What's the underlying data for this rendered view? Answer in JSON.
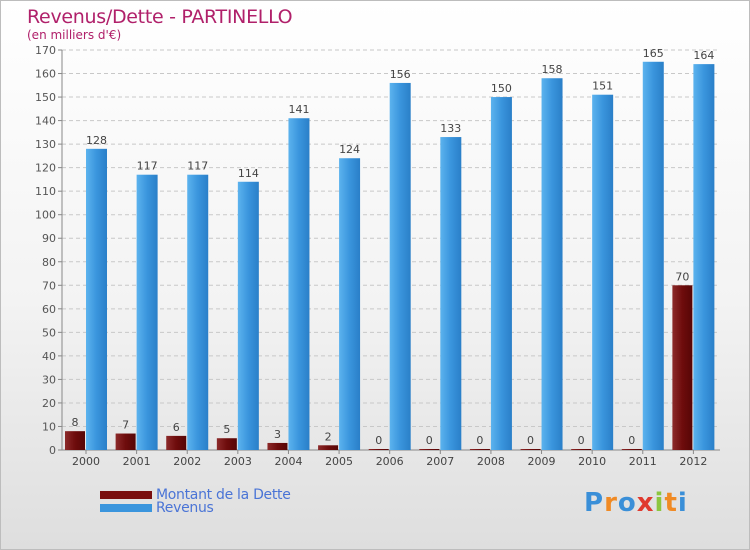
{
  "title": "Revenus/Dette - PARTINELLO",
  "subtitle": "(en milliers d'€)",
  "logo": {
    "text": "Proxiti",
    "letters": [
      "P",
      "r",
      "o",
      "x",
      "i",
      "t",
      "i"
    ],
    "colors": [
      "#3a8fd8",
      "#f08a24",
      "#3a8fd8",
      "#e03a2e",
      "#8cc63f",
      "#f08a24",
      "#3a8fd8"
    ]
  },
  "colors": {
    "dette": "#7a0f0f",
    "revenus": "#3a95dd",
    "title": "#b0206a",
    "legend_text": "#4a74d6"
  },
  "chart_data": {
    "type": "bar",
    "title": "Revenus/Dette - PARTINELLO",
    "ylabel": "(en milliers d'€)",
    "xlabel": "",
    "ylim": [
      0,
      170
    ],
    "yticks": [
      0,
      10,
      20,
      30,
      40,
      50,
      60,
      70,
      80,
      90,
      100,
      110,
      120,
      130,
      140,
      150,
      160,
      170
    ],
    "grid": true,
    "legend_position": "bottom-left",
    "categories": [
      "2000",
      "2001",
      "2002",
      "2003",
      "2004",
      "2005",
      "2006",
      "2007",
      "2008",
      "2009",
      "2010",
      "2011",
      "2012"
    ],
    "series": [
      {
        "name": "Montant de la Dette",
        "values": [
          8,
          7,
          6,
          5,
          3,
          2,
          0,
          0,
          0,
          0,
          0,
          0,
          70
        ]
      },
      {
        "name": "Revenus",
        "values": [
          128,
          117,
          117,
          114,
          141,
          124,
          156,
          133,
          150,
          158,
          151,
          165,
          164
        ]
      }
    ]
  }
}
